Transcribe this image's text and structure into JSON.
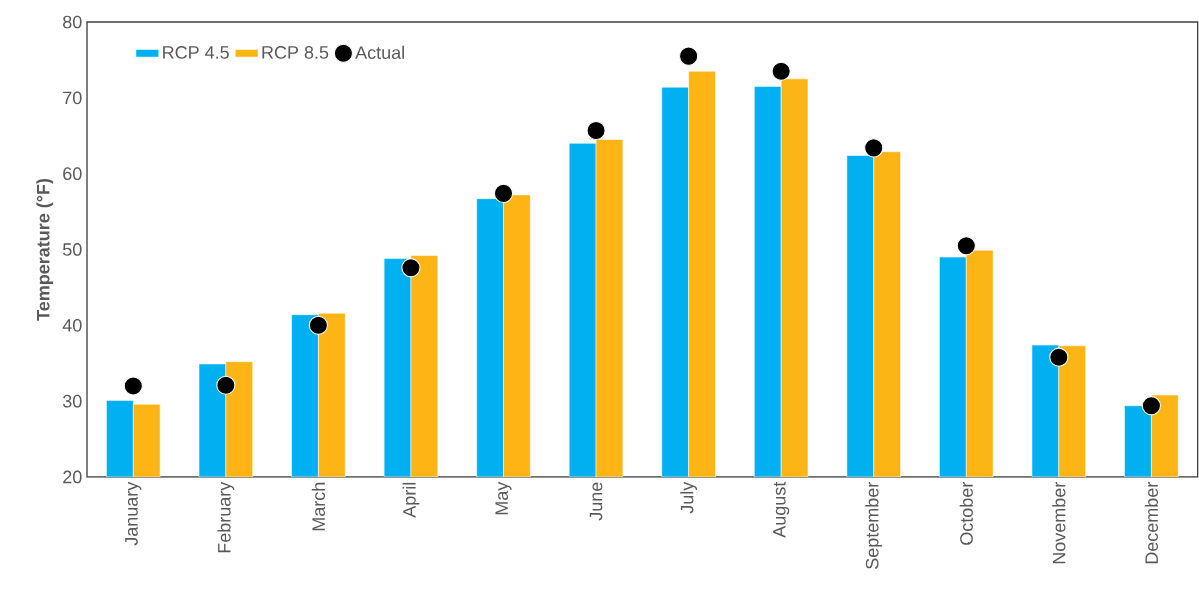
{
  "chart_data": {
    "type": "bar",
    "ylabel": "Temperature (°F)",
    "categories": [
      "January",
      "February",
      "March",
      "April",
      "May",
      "June",
      "July",
      "August",
      "September",
      "October",
      "November",
      "December"
    ],
    "series": [
      {
        "name": "RCP 4.5",
        "color": "#00b0f0",
        "values": [
          30.1,
          34.9,
          41.4,
          48.8,
          56.7,
          64.0,
          71.4,
          71.5,
          62.4,
          49.0,
          37.4,
          29.4
        ]
      },
      {
        "name": "RCP 8.5",
        "color": "#fdb515",
        "values": [
          29.6,
          35.2,
          41.6,
          49.2,
          57.2,
          64.5,
          73.5,
          72.5,
          62.9,
          49.9,
          37.3,
          30.8
        ]
      },
      {
        "name": "Actual",
        "type": "scatter",
        "color": "#000000",
        "marker": "circle",
        "values": [
          32.0,
          32.1,
          40.0,
          47.6,
          57.4,
          65.7,
          75.5,
          73.5,
          63.4,
          50.5,
          35.8,
          29.4
        ]
      }
    ],
    "ylim": [
      20,
      80
    ],
    "yticks": [
      20,
      30,
      40,
      50,
      60,
      70,
      80
    ],
    "grid": false,
    "legend": "top left"
  }
}
